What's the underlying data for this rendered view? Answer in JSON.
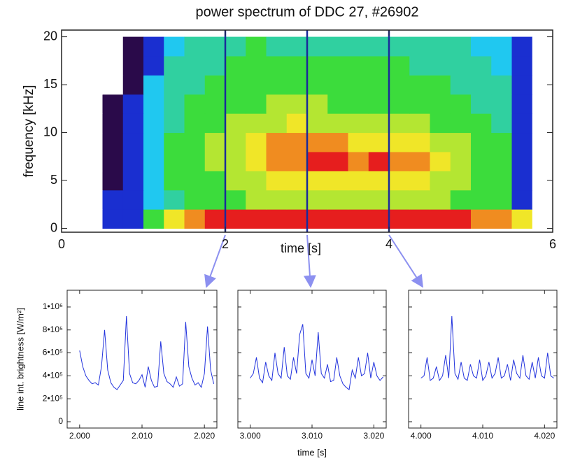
{
  "chart_data": [
    {
      "type": "heatmap",
      "title": "power spectrum of DDC 27, #26902",
      "xlabel": "time [s]",
      "ylabel": "frequency [kHz]",
      "xlim": [
        0,
        6
      ],
      "ylim": [
        -0.4,
        20.7
      ],
      "xticks": [
        0,
        2,
        4,
        6
      ],
      "yticks": [
        0,
        5,
        10,
        15,
        20
      ],
      "xbins": [
        0,
        0.25,
        0.5,
        0.75,
        1,
        1.25,
        1.5,
        1.75,
        2,
        2.25,
        2.5,
        2.75,
        3,
        3.25,
        3.5,
        3.75,
        4,
        4.25,
        4.5,
        4.75,
        5,
        5.25,
        5.5,
        5.75,
        6
      ],
      "ybins": [
        0,
        2,
        4,
        6,
        8,
        10,
        12,
        14,
        16,
        18,
        20
      ],
      "colors": [
        "#ffffff",
        "#2a0a4a",
        "#1a2fd0",
        "#20c8f0",
        "#30d0a0",
        "#3cdc3c",
        "#b4e632",
        "#f0e628",
        "#f08c20",
        "#e61e1e"
      ],
      "values": [
        [
          0,
          0,
          2,
          2,
          5,
          7,
          8,
          9,
          9,
          9,
          9,
          9,
          9,
          9,
          9,
          9,
          9,
          9,
          9,
          9,
          8,
          8,
          7,
          0
        ],
        [
          0,
          0,
          2,
          2,
          3,
          4,
          5,
          5,
          5,
          6,
          6,
          6,
          6,
          6,
          6,
          6,
          6,
          6,
          6,
          5,
          5,
          5,
          2,
          0
        ],
        [
          0,
          0,
          1,
          2,
          3,
          5,
          5,
          5,
          6,
          6,
          7,
          7,
          7,
          7,
          7,
          7,
          7,
          7,
          6,
          6,
          5,
          5,
          2,
          0
        ],
        [
          0,
          0,
          1,
          2,
          3,
          5,
          5,
          6,
          6,
          7,
          8,
          8,
          9,
          9,
          8,
          9,
          8,
          8,
          7,
          6,
          5,
          5,
          2,
          0
        ],
        [
          0,
          0,
          1,
          2,
          3,
          5,
          5,
          6,
          6,
          7,
          8,
          8,
          8,
          8,
          7,
          7,
          7,
          7,
          6,
          6,
          5,
          5,
          2,
          0
        ],
        [
          0,
          0,
          1,
          2,
          3,
          4,
          5,
          5,
          6,
          6,
          6,
          7,
          6,
          6,
          6,
          6,
          6,
          6,
          5,
          5,
          5,
          4,
          2,
          0
        ],
        [
          0,
          0,
          1,
          2,
          3,
          4,
          5,
          5,
          5,
          5,
          6,
          6,
          6,
          5,
          5,
          5,
          5,
          5,
          5,
          5,
          4,
          4,
          2,
          0
        ],
        [
          0,
          0,
          0,
          1,
          3,
          4,
          4,
          5,
          5,
          5,
          5,
          5,
          5,
          5,
          5,
          5,
          5,
          5,
          5,
          4,
          4,
          4,
          2,
          0
        ],
        [
          0,
          0,
          0,
          1,
          2,
          4,
          4,
          4,
          5,
          5,
          5,
          5,
          5,
          5,
          5,
          5,
          5,
          4,
          4,
          4,
          4,
          3,
          2,
          0
        ],
        [
          0,
          0,
          0,
          1,
          2,
          3,
          4,
          4,
          4,
          5,
          4,
          4,
          4,
          4,
          4,
          4,
          4,
          4,
          4,
          4,
          3,
          3,
          2,
          0
        ]
      ],
      "markers": [
        2,
        3,
        4
      ],
      "marker_color": "#1a2a9a"
    },
    {
      "type": "line",
      "ylabel": "line int. brightness [W/m²]",
      "color": "#2233dd",
      "xlim": [
        1.998,
        2.022
      ],
      "ylim": [
        -55000,
        1146000
      ],
      "ytick_labels": true,
      "xticks": [
        {
          "value": 2,
          "label": "2.000"
        },
        {
          "value": 2.01,
          "label": "2.010"
        },
        {
          "value": 2.02,
          "label": "2.020"
        }
      ],
      "yticks": [
        {
          "value": 0,
          "label": "0"
        },
        {
          "value": 200000,
          "label": "2•10⁵"
        },
        {
          "value": 400000,
          "label": "4•10⁵"
        },
        {
          "value": 600000,
          "label": "6•10⁵"
        },
        {
          "value": 800000,
          "label": "8•10⁵"
        },
        {
          "value": 1000000,
          "label": "1•10⁶"
        }
      ],
      "x": [
        2.0,
        2.0005,
        2.001,
        2.0015,
        2.002,
        2.0025,
        2.003,
        2.0035,
        2.004,
        2.0045,
        2.005,
        2.0055,
        2.006,
        2.0065,
        2.007,
        2.0075,
        2.008,
        2.0085,
        2.009,
        2.0095,
        2.01,
        2.0105,
        2.011,
        2.0115,
        2.012,
        2.0125,
        2.013,
        2.0135,
        2.014,
        2.0145,
        2.015,
        2.0155,
        2.016,
        2.0165,
        2.017,
        2.0175,
        2.018,
        2.0185,
        2.019,
        2.0195,
        2.02,
        2.0205,
        2.021,
        2.0215
      ],
      "values": [
        620000,
        480000,
        400000,
        360000,
        330000,
        340000,
        320000,
        480000,
        800000,
        450000,
        340000,
        300000,
        280000,
        320000,
        360000,
        920000,
        420000,
        340000,
        330000,
        360000,
        410000,
        300000,
        480000,
        360000,
        300000,
        310000,
        700000,
        420000,
        350000,
        330000,
        300000,
        390000,
        310000,
        330000,
        870000,
        480000,
        380000,
        320000,
        340000,
        300000,
        420000,
        830000,
        450000,
        330000
      ]
    },
    {
      "type": "line",
      "xlabel": "time [s]",
      "color": "#2233dd",
      "xlim": [
        2.998,
        3.022
      ],
      "ylim": [
        -55000,
        1146000
      ],
      "ytick_labels": false,
      "xticks": [
        {
          "value": 3,
          "label": "3.000"
        },
        {
          "value": 3.01,
          "label": "3.010"
        },
        {
          "value": 3.02,
          "label": "3.020"
        }
      ],
      "yticks": [
        0,
        200000,
        400000,
        600000,
        800000,
        1000000
      ],
      "x": [
        3.0,
        3.0005,
        3.001,
        3.0015,
        3.002,
        3.0025,
        3.003,
        3.0035,
        3.004,
        3.0045,
        3.005,
        3.0055,
        3.006,
        3.0065,
        3.007,
        3.0075,
        3.008,
        3.0085,
        3.009,
        3.0095,
        3.01,
        3.0105,
        3.011,
        3.0115,
        3.012,
        3.0125,
        3.013,
        3.0135,
        3.014,
        3.0145,
        3.015,
        3.0155,
        3.016,
        3.0165,
        3.017,
        3.0175,
        3.018,
        3.0185,
        3.019,
        3.0195,
        3.02,
        3.0205,
        3.021,
        3.0215
      ],
      "values": [
        380000,
        420000,
        560000,
        380000,
        340000,
        520000,
        400000,
        360000,
        600000,
        420000,
        380000,
        650000,
        400000,
        370000,
        560000,
        420000,
        760000,
        850000,
        420000,
        380000,
        540000,
        400000,
        780000,
        420000,
        380000,
        500000,
        350000,
        360000,
        560000,
        400000,
        330000,
        300000,
        280000,
        450000,
        380000,
        560000,
        400000,
        420000,
        600000,
        380000,
        520000,
        400000,
        360000,
        390000
      ]
    },
    {
      "type": "line",
      "color": "#2233dd",
      "xlim": [
        3.998,
        4.022
      ],
      "ylim": [
        -55000,
        1146000
      ],
      "ytick_labels": false,
      "xticks": [
        {
          "value": 4,
          "label": "4.000"
        },
        {
          "value": 4.01,
          "label": "4.010"
        },
        {
          "value": 4.02,
          "label": "4.020"
        }
      ],
      "yticks": [
        0,
        200000,
        400000,
        600000,
        800000,
        1000000
      ],
      "x": [
        4.0,
        4.0005,
        4.001,
        4.0015,
        4.002,
        4.0025,
        4.003,
        4.0035,
        4.004,
        4.0045,
        4.005,
        4.0055,
        4.006,
        4.0065,
        4.007,
        4.0075,
        4.008,
        4.0085,
        4.009,
        4.0095,
        4.01,
        4.0105,
        4.011,
        4.0115,
        4.012,
        4.0125,
        4.013,
        4.0135,
        4.014,
        4.0145,
        4.015,
        4.0155,
        4.016,
        4.0165,
        4.017,
        4.0175,
        4.018,
        4.0185,
        4.019,
        4.0195,
        4.02,
        4.0205,
        4.021,
        4.0215
      ],
      "values": [
        380000,
        400000,
        560000,
        360000,
        380000,
        480000,
        360000,
        400000,
        580000,
        380000,
        920000,
        420000,
        370000,
        520000,
        380000,
        360000,
        500000,
        400000,
        380000,
        540000,
        360000,
        400000,
        520000,
        380000,
        420000,
        560000,
        380000,
        400000,
        500000,
        360000,
        540000,
        420000,
        380000,
        580000,
        400000,
        370000,
        520000,
        380000,
        560000,
        400000,
        380000,
        600000,
        400000,
        380000
      ]
    }
  ]
}
